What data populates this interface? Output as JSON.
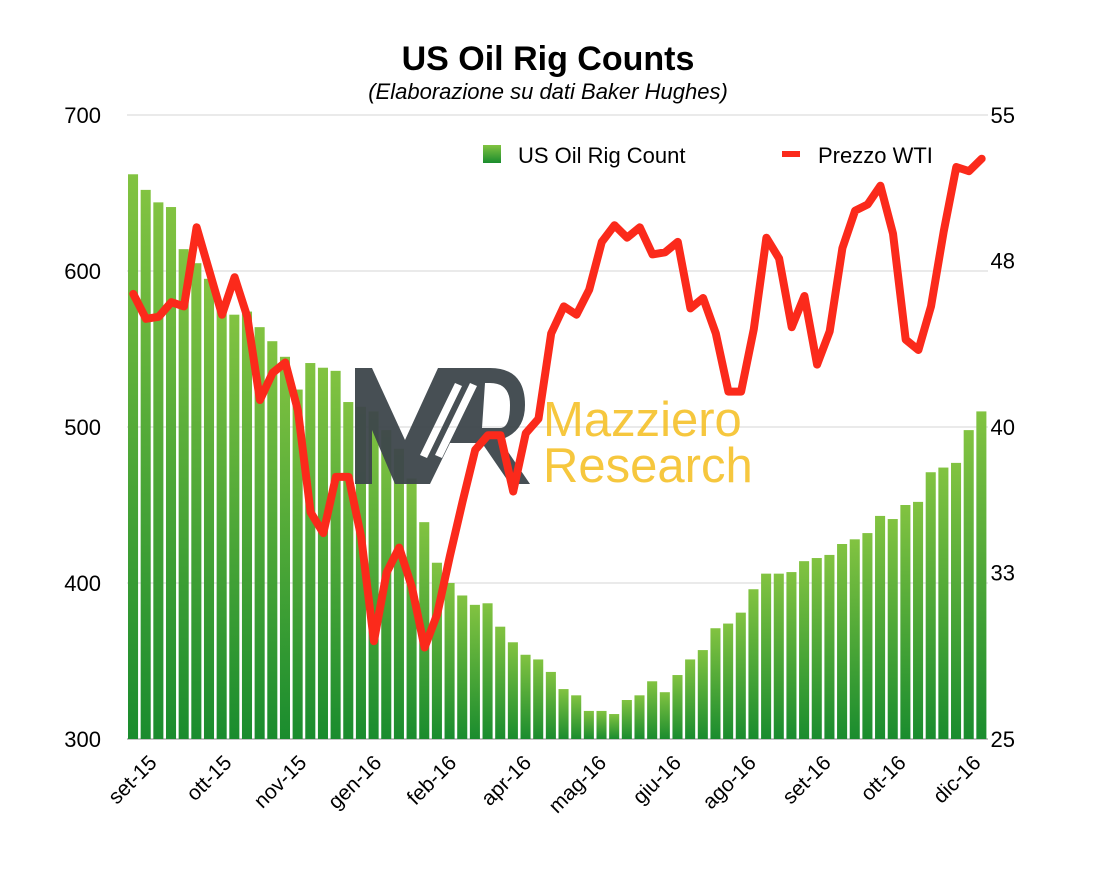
{
  "chart_data": {
    "type": "bar",
    "title": "US Oil Rig Counts",
    "subtitle": "(Elaborazione su dati Baker Hughes)",
    "xlabel": "",
    "ylabel": "",
    "y_left_lim": [
      300,
      700
    ],
    "y_left_ticks": [
      300,
      400,
      500,
      600,
      700
    ],
    "y_right_lim": [
      25,
      55
    ],
    "y_right_ticks": [
      25,
      33,
      40,
      48,
      55
    ],
    "x_tick_labels": [
      "set-15",
      "ott-15",
      "nov-15",
      "gen-16",
      "feb-16",
      "apr-16",
      "mag-16",
      "giu-16",
      "ago-16",
      "set-16",
      "ott-16",
      "dic-16"
    ],
    "grid": true,
    "legend_position": "top-right",
    "series": [
      {
        "name": "US Oil Rig Count",
        "type": "bar",
        "axis": "left",
        "values": [
          662,
          652,
          644,
          641,
          614,
          605,
          595,
          578,
          572,
          574,
          564,
          555,
          545,
          524,
          541,
          538,
          536,
          516,
          513,
          510,
          498,
          486,
          467,
          439,
          413,
          400,
          392,
          386,
          387,
          372,
          362,
          354,
          351,
          343,
          332,
          328,
          318,
          318,
          316,
          325,
          328,
          337,
          330,
          341,
          351,
          357,
          371,
          374,
          381,
          396,
          406,
          406,
          407,
          414,
          416,
          418,
          425,
          428,
          432,
          443,
          441,
          450,
          452,
          471,
          474,
          477,
          498,
          510
        ]
      },
      {
        "name": "Prezzo WTI",
        "type": "line",
        "axis": "right",
        "values": [
          46.4,
          45.2,
          45.3,
          46.0,
          45.8,
          49.6,
          47.5,
          45.4,
          47.2,
          45.3,
          41.3,
          42.6,
          43.1,
          40.8,
          35.9,
          34.9,
          37.6,
          37.6,
          34.7,
          29.7,
          33.0,
          34.2,
          32.3,
          29.4,
          31.0,
          33.8,
          36.4,
          38.9,
          39.6,
          39.6,
          36.9,
          39.7,
          40.4,
          44.5,
          45.8,
          45.4,
          46.6,
          48.9,
          49.7,
          49.1,
          49.6,
          48.3,
          48.4,
          48.9,
          45.7,
          46.2,
          44.5,
          41.7,
          41.7,
          44.7,
          49.1,
          48.1,
          44.8,
          46.3,
          43.0,
          44.6,
          48.6,
          50.4,
          50.7,
          51.6,
          49.3,
          44.2,
          43.7,
          45.8,
          49.4,
          52.5,
          52.3,
          52.9
        ]
      }
    ]
  },
  "watermark": {
    "line1": "Mazziero",
    "line2": "Research"
  },
  "colors": {
    "bar_top": "#82c341",
    "bar_bottom": "#1a8c2e",
    "line": "#fb2a1b",
    "watermark_dark": "#3d464b",
    "watermark_gold": "#f5be1f"
  }
}
